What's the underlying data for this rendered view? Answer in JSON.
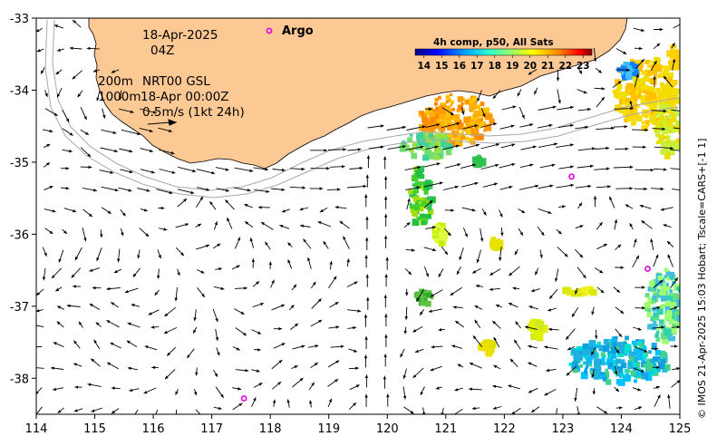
{
  "map": {
    "title_date": "18-Apr-2025",
    "title_time": "04Z",
    "contours_label_1": "200m",
    "contours_label_2": "1000m",
    "product": "NRT00 GSL",
    "product_date": "18-Apr 00:00Z",
    "scale_vector": "0.5m/s (1kt 24h)",
    "argo_label": "Argo",
    "side_credit": "© IMOS 21-Apr-2025 15:03 Hobart; Tscale=CARS+[-1 1]",
    "lon_range": [
      114,
      125
    ],
    "lat_range": [
      -38.5,
      -33
    ],
    "x_ticks": [
      "114",
      "115",
      "116",
      "117",
      "118",
      "119",
      "120",
      "121",
      "122",
      "123",
      "124",
      "125"
    ],
    "y_ticks": [
      "-33",
      "-34",
      "-35",
      "-36",
      "-37",
      "-38"
    ],
    "argo_floats": [
      {
        "lon": 123.15,
        "lat": -35.2
      },
      {
        "lon": 124.45,
        "lat": -36.48
      },
      {
        "lon": 117.55,
        "lat": -38.28
      }
    ]
  },
  "colorbar": {
    "title": "4h comp, p50, All Sats",
    "ticks": [
      "14",
      "15",
      "16",
      "17",
      "18",
      "19",
      "20",
      "21",
      "22",
      "23"
    ],
    "range": [
      13.5,
      23.5
    ]
  },
  "colors": {
    "land": "#fcc894",
    "argo": "#e000e0",
    "contour": "#a8a8a8",
    "colormap": [
      "#00007f",
      "#0000ff",
      "#007fff",
      "#00ffff",
      "#7fff7f",
      "#ffff00",
      "#ff7f00",
      "#ff0000",
      "#7f0000"
    ]
  }
}
